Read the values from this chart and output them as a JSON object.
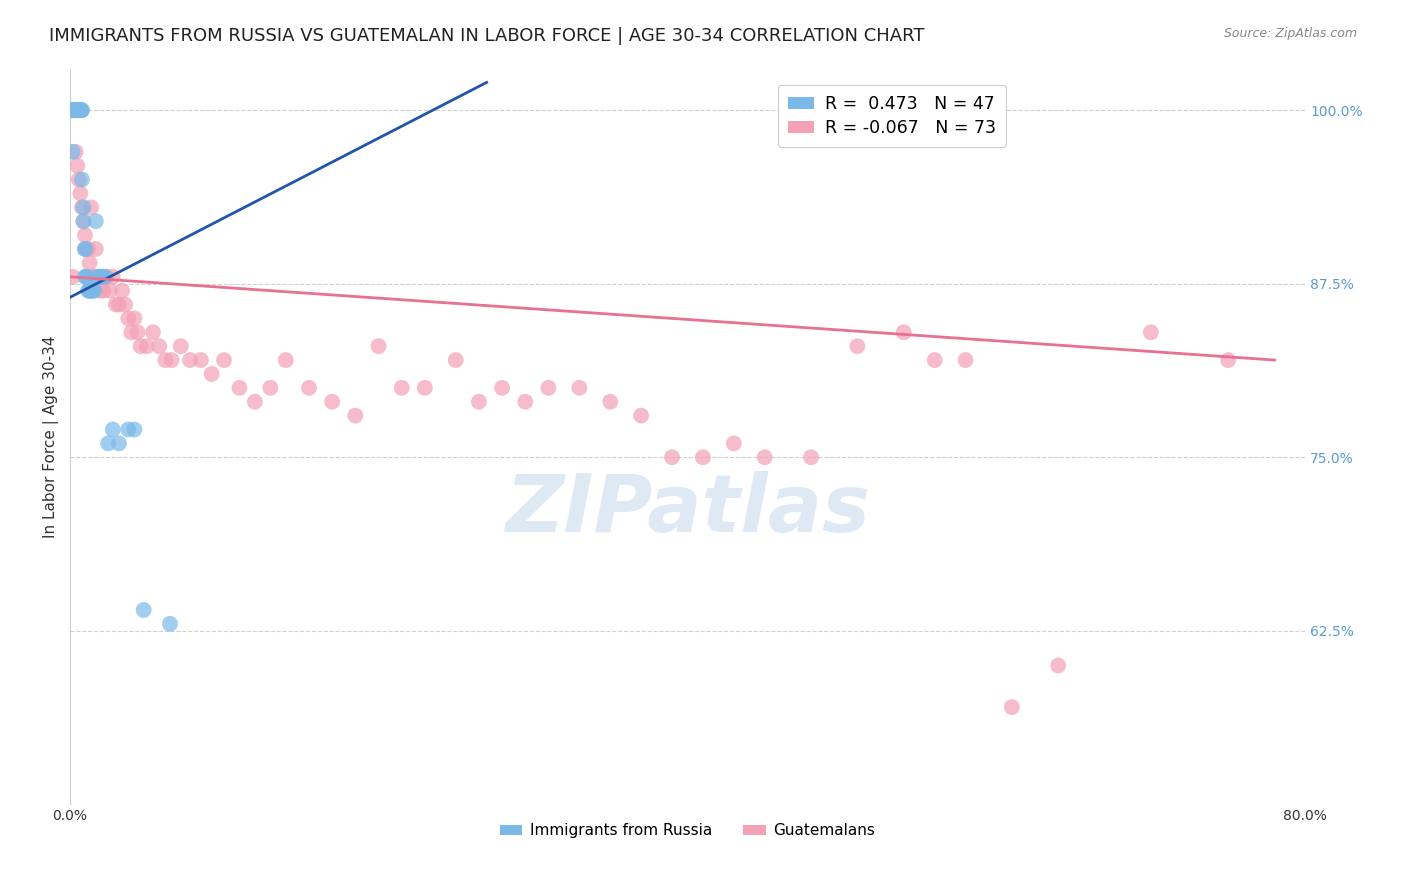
{
  "title": "IMMIGRANTS FROM RUSSIA VS GUATEMALAN IN LABOR FORCE | AGE 30-34 CORRELATION CHART",
  "source": "Source: ZipAtlas.com",
  "ylabel": "In Labor Force | Age 30-34",
  "xlim": [
    0.0,
    0.8
  ],
  "ylim": [
    0.5,
    1.03
  ],
  "yticks": [
    0.625,
    0.75,
    0.875,
    1.0
  ],
  "ytick_labels": [
    "62.5%",
    "75.0%",
    "87.5%",
    "100.0%"
  ],
  "xticks": [
    0.0,
    0.1,
    0.2,
    0.3,
    0.4,
    0.5,
    0.6,
    0.7,
    0.8
  ],
  "xtick_labels": [
    "0.0%",
    "",
    "",
    "",
    "",
    "",
    "",
    "",
    "80.0%"
  ],
  "legend_entries": [
    {
      "label": "Immigrants from Russia",
      "R": "0.473",
      "N": "47",
      "color": "#7ab8e8"
    },
    {
      "label": "Guatemalans",
      "R": "-0.067",
      "N": "73",
      "color": "#f4a0b5"
    }
  ],
  "watermark": "ZIPatlas",
  "blue_scatter_color": "#7ab8e8",
  "pink_scatter_color": "#f4a0b5",
  "blue_line_color": "#2255aa",
  "pink_line_color": "#e87090",
  "russia_x": [
    0.001,
    0.001,
    0.002,
    0.002,
    0.003,
    0.003,
    0.004,
    0.004,
    0.005,
    0.005,
    0.005,
    0.006,
    0.006,
    0.006,
    0.007,
    0.007,
    0.007,
    0.007,
    0.008,
    0.008,
    0.008,
    0.009,
    0.009,
    0.01,
    0.01,
    0.01,
    0.011,
    0.011,
    0.012,
    0.013,
    0.013,
    0.014,
    0.015,
    0.016,
    0.017,
    0.018,
    0.02,
    0.021,
    0.022,
    0.023,
    0.025,
    0.028,
    0.032,
    0.038,
    0.042,
    0.048,
    0.065
  ],
  "russia_y": [
    1.0,
    1.0,
    1.0,
    0.97,
    1.0,
    1.0,
    1.0,
    1.0,
    1.0,
    1.0,
    1.0,
    1.0,
    1.0,
    1.0,
    1.0,
    1.0,
    1.0,
    1.0,
    1.0,
    1.0,
    0.95,
    0.93,
    0.92,
    0.9,
    0.9,
    0.88,
    0.88,
    0.88,
    0.87,
    0.87,
    0.87,
    0.87,
    0.87,
    0.87,
    0.92,
    0.88,
    0.88,
    0.88,
    0.88,
    0.88,
    0.76,
    0.77,
    0.76,
    0.77,
    0.77,
    0.64,
    0.63
  ],
  "guatemala_x": [
    0.002,
    0.003,
    0.004,
    0.005,
    0.006,
    0.007,
    0.008,
    0.009,
    0.01,
    0.011,
    0.012,
    0.013,
    0.014,
    0.015,
    0.016,
    0.017,
    0.018,
    0.019,
    0.02,
    0.022,
    0.024,
    0.026,
    0.028,
    0.03,
    0.032,
    0.034,
    0.036,
    0.038,
    0.04,
    0.042,
    0.044,
    0.046,
    0.05,
    0.054,
    0.058,
    0.062,
    0.066,
    0.072,
    0.078,
    0.085,
    0.092,
    0.1,
    0.11,
    0.12,
    0.13,
    0.14,
    0.155,
    0.17,
    0.185,
    0.2,
    0.215,
    0.23,
    0.25,
    0.265,
    0.28,
    0.295,
    0.31,
    0.33,
    0.35,
    0.37,
    0.39,
    0.41,
    0.43,
    0.45,
    0.48,
    0.51,
    0.54,
    0.56,
    0.58,
    0.61,
    0.64,
    0.7,
    0.75
  ],
  "guatemala_y": [
    0.88,
    1.0,
    0.97,
    0.96,
    0.95,
    0.94,
    0.93,
    0.92,
    0.91,
    0.9,
    0.9,
    0.89,
    0.93,
    0.88,
    0.88,
    0.9,
    0.88,
    0.88,
    0.87,
    0.87,
    0.88,
    0.87,
    0.88,
    0.86,
    0.86,
    0.87,
    0.86,
    0.85,
    0.84,
    0.85,
    0.84,
    0.83,
    0.83,
    0.84,
    0.83,
    0.82,
    0.82,
    0.83,
    0.82,
    0.82,
    0.81,
    0.82,
    0.8,
    0.79,
    0.8,
    0.82,
    0.8,
    0.79,
    0.78,
    0.83,
    0.8,
    0.8,
    0.82,
    0.79,
    0.8,
    0.79,
    0.8,
    0.8,
    0.79,
    0.78,
    0.75,
    0.75,
    0.76,
    0.75,
    0.75,
    0.83,
    0.84,
    0.82,
    0.82,
    0.57,
    0.6,
    0.84,
    0.82
  ],
  "background_color": "#ffffff",
  "grid_color": "#d0d0d0",
  "title_fontsize": 13,
  "axis_label_fontsize": 11,
  "tick_fontsize": 10,
  "right_tick_color": "#5b9bd5"
}
